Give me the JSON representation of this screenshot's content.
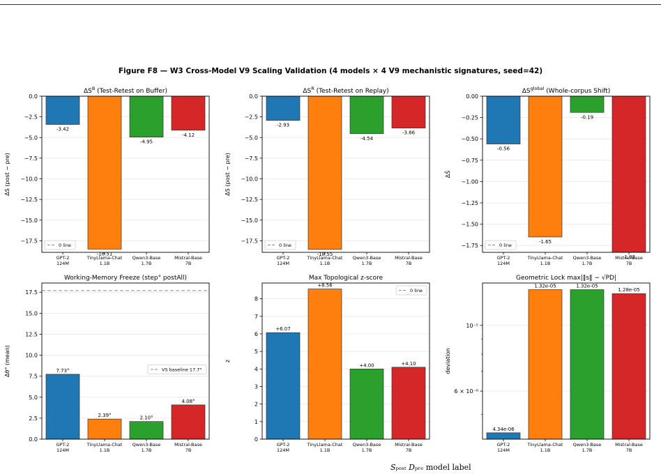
{
  "figure": {
    "suptitle": "Figure F8 — W3 Cross-Model V9 Scaling Validation  (4 models × 4 V9 mechanistic signatures, seed=42)",
    "footer": "𝑆ₚₒₛₜ  𝐷ₚᵣₑ  model label"
  },
  "colors": {
    "blue": "#1f77b4",
    "orange": "#ff7f0e",
    "green": "#2ca02c",
    "red": "#d62728"
  },
  "chart_data": [
    {
      "id": "p1",
      "type": "bar",
      "title_main": "ΔS",
      "title_sup": "B",
      "title_rest": "  (Test-Retest on Buffer)",
      "ylabel": "ΔS (post − pre)",
      "categories": [
        "GPT-2\n124M",
        "TinyLlama-Chat\n1.1B",
        "Qwen3-Base\n1.7B",
        "Mistral-Base\n7B"
      ],
      "values": [
        -3.42,
        -18.51,
        -4.95,
        -4.12
      ],
      "labels": [
        "-3.42",
        "-18.51",
        "-4.95",
        "-4.12"
      ],
      "ylim": [
        -18.9,
        0.0
      ],
      "ticks": [
        0.0,
        -2.5,
        -5.0,
        -7.5,
        -10.0,
        -12.5,
        -15.0,
        -17.5
      ],
      "tick_labels": [
        "0.0",
        "−2.5",
        "−5.0",
        "−7.5",
        "−10.0",
        "−12.5",
        "−15.0",
        "−17.5"
      ],
      "legend": {
        "label": "0 line",
        "position": "lower-left",
        "style": "dashed"
      }
    },
    {
      "id": "p2",
      "type": "bar",
      "title_main": "ΔS",
      "title_sup": "R",
      "title_rest": "  (Test-Retest on Replay)",
      "ylabel": "ΔS (post − pre)",
      "categories": [
        "GPT-2\n124M",
        "TinyLlama-Chat\n1.1B",
        "Qwen3-Base\n1.7B",
        "Mistral-Base\n7B"
      ],
      "values": [
        -2.93,
        -18.55,
        -4.54,
        -3.86
      ],
      "labels": [
        "-2.93",
        "-18.55",
        "-4.54",
        "-3.86"
      ],
      "ylim": [
        -18.9,
        0.0
      ],
      "ticks": [
        0.0,
        -2.5,
        -5.0,
        -7.5,
        -10.0,
        -12.5,
        -15.0,
        -17.5
      ],
      "tick_labels": [
        "0.0",
        "−2.5",
        "−5.0",
        "−7.5",
        "−10.0",
        "−12.5",
        "−15.0",
        "−17.5"
      ],
      "legend": {
        "label": "0 line",
        "position": "lower-left",
        "style": "dashed"
      }
    },
    {
      "id": "p3",
      "type": "bar",
      "title_main": "ΔS",
      "title_sup": "global",
      "title_rest": "  (Whole-corpus Shift)",
      "ylabel": "ΔS̄",
      "categories": [
        "GPT-2\n124M",
        "TinyLlama-Chat\n1.1B",
        "Qwen3-Base\n1.7B",
        "Mistral-Base\n7B"
      ],
      "values": [
        -0.56,
        -1.65,
        -0.19,
        -1.83
      ],
      "labels": [
        "-0.56",
        "-1.65",
        "-0.19",
        "-1.83"
      ],
      "ylim": [
        -1.83,
        0.0
      ],
      "ticks": [
        0.0,
        -0.25,
        -0.5,
        -0.75,
        -1.0,
        -1.25,
        -1.5,
        -1.75
      ],
      "tick_labels": [
        "0.00",
        "−0.25",
        "−0.50",
        "−0.75",
        "−1.00",
        "−1.25",
        "−1.50",
        "−1.75"
      ],
      "legend": {
        "label": "0 line",
        "position": "lower-left",
        "style": "dashed"
      }
    },
    {
      "id": "p4",
      "type": "bar",
      "title_main": "Working-Memory Freeze  (step° postAll)",
      "title_sup": "",
      "title_rest": "",
      "ylabel": "Δθ° (mean)",
      "categories": [
        "GPT-2\n124M",
        "TinyLlama-Chat\n1.1B",
        "Qwen3-Base\n1.7B",
        "Mistral-Base\n7B"
      ],
      "values": [
        7.73,
        2.39,
        2.1,
        4.08
      ],
      "labels": [
        "7.73°",
        "2.39°",
        "2.10°",
        "4.08°"
      ],
      "ylim": [
        0,
        18.6
      ],
      "ticks": [
        0.0,
        2.5,
        5.0,
        7.5,
        10.0,
        12.5,
        15.0,
        17.5
      ],
      "tick_labels": [
        "0.0",
        "2.5",
        "5.0",
        "7.5",
        "10.0",
        "12.5",
        "15.0",
        "17.5"
      ],
      "hline": 17.7,
      "legend": {
        "label": "VS baseline 17.7°",
        "position": "center-right",
        "style": "dashed"
      }
    },
    {
      "id": "p5",
      "type": "bar",
      "title_main": "Max Topological z-score",
      "title_sup": "",
      "title_rest": "",
      "ylabel": "z",
      "categories": [
        "GPT-2\n124M",
        "TinyLlama-Chat\n1.1B",
        "Qwen3-Base\n1.7B",
        "Mistral-Base\n7B"
      ],
      "values": [
        6.07,
        8.56,
        4.0,
        4.1
      ],
      "labels": [
        "+6.07",
        "+8.56",
        "+4.00",
        "+4.10"
      ],
      "ylim": [
        0,
        8.9
      ],
      "ticks": [
        0,
        1,
        2,
        3,
        4,
        5,
        6,
        7,
        8
      ],
      "tick_labels": [
        "0",
        "1",
        "2",
        "3",
        "4",
        "5",
        "6",
        "7",
        "8"
      ],
      "legend": {
        "label": "0 line",
        "position": "upper-right",
        "style": "dashed"
      }
    },
    {
      "id": "p6",
      "type": "bar",
      "title_main": "Geometric Lock  max|‖s‖ − √PD|",
      "title_sup": "",
      "title_rest": "",
      "ylabel": "deviation",
      "yscale": "log",
      "categories": [
        "GPT-2\n124M",
        "TinyLlama-Chat\n1.1B",
        "Qwen3-Base\n1.7B",
        "Mistral-Base\n7B"
      ],
      "values": [
        4.34e-06,
        1.32e-05,
        1.32e-05,
        1.28e-05
      ],
      "labels": [
        "4.34e-06",
        "1.32e-05",
        "1.32e-05",
        "1.28e-05"
      ],
      "ylim": [
        4.13e-06,
        1.39e-05
      ],
      "ticks": [
        1e-05,
        6e-06
      ],
      "tick_labels": [
        "10⁻⁵",
        "6 × 10⁻⁶"
      ],
      "minor_ticks": [
        5e-06,
        7e-06,
        8e-06,
        9e-06
      ]
    }
  ]
}
